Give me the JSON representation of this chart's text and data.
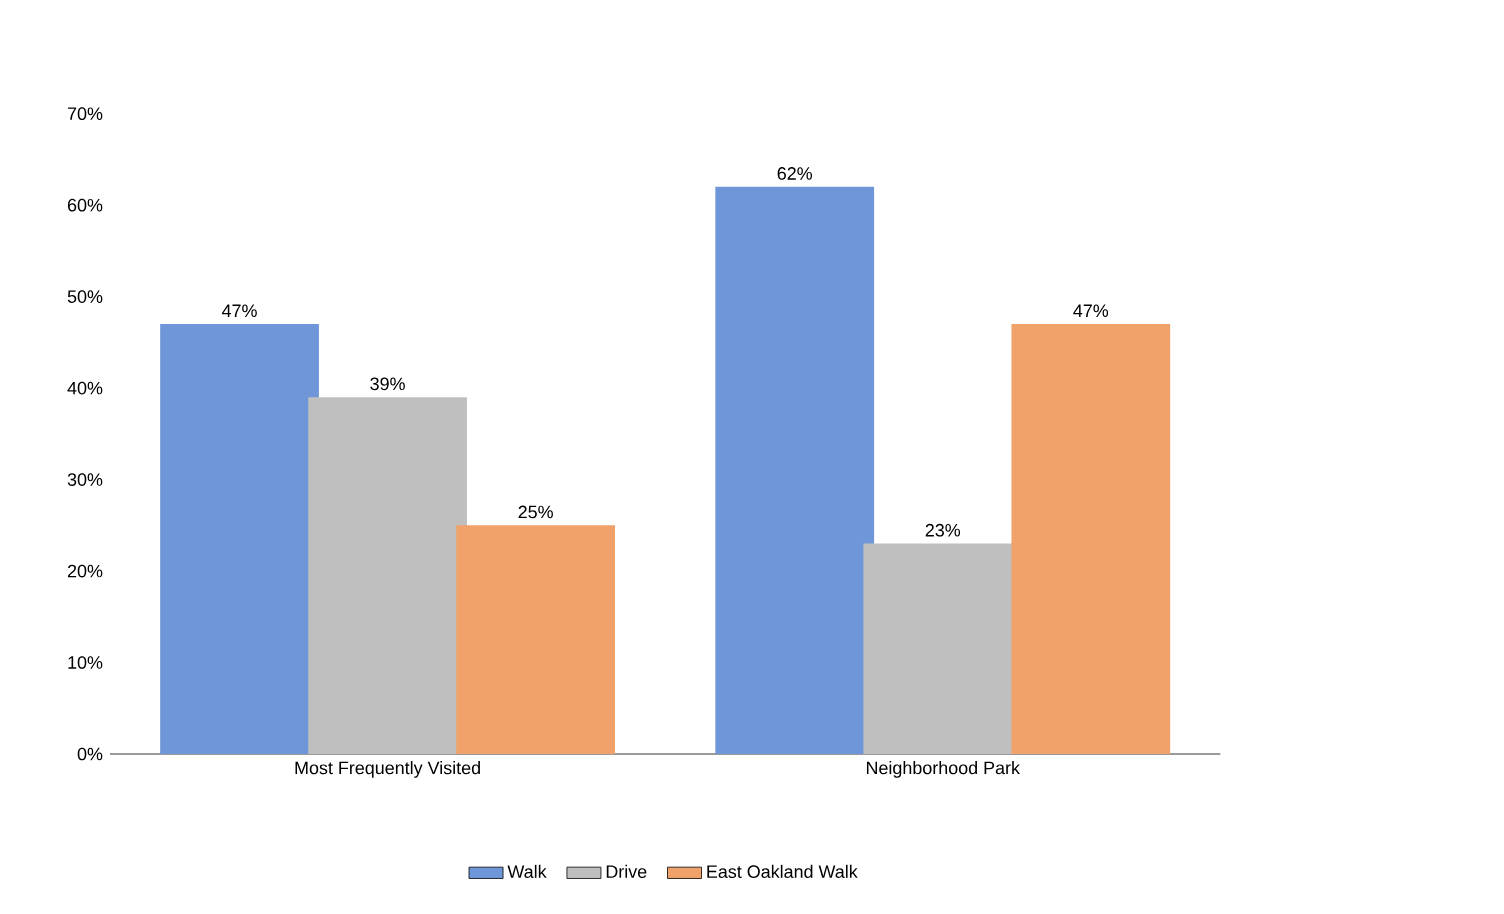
{
  "chart_data": {
    "type": "bar",
    "categories": [
      "Most Frequently Visited",
      "Neighborhood Park"
    ],
    "series": [
      {
        "name": "Walk",
        "color": "#6f96d8",
        "values": [
          47,
          62
        ],
        "value_labels": [
          "47%",
          "62%"
        ]
      },
      {
        "name": "Drive",
        "color": "#bfbfbf",
        "values": [
          39,
          23
        ],
        "value_labels": [
          "39%",
          "23%"
        ]
      },
      {
        "name": "East Oakland Walk",
        "color": "#f0a26a",
        "values": [
          25,
          47
        ],
        "value_labels": [
          "25%",
          "47%"
        ]
      }
    ],
    "ylim": [
      0,
      70
    ],
    "yticks": [
      {
        "value": 0,
        "label": "0%"
      },
      {
        "value": 10,
        "label": "10%"
      },
      {
        "value": 20,
        "label": "20%"
      },
      {
        "value": 30,
        "label": "30%"
      },
      {
        "value": 40,
        "label": "40%"
      },
      {
        "value": 50,
        "label": "50%"
      },
      {
        "value": 60,
        "label": "60%"
      },
      {
        "value": 70,
        "label": "70%"
      }
    ],
    "grid": false,
    "legend": "bottom"
  }
}
